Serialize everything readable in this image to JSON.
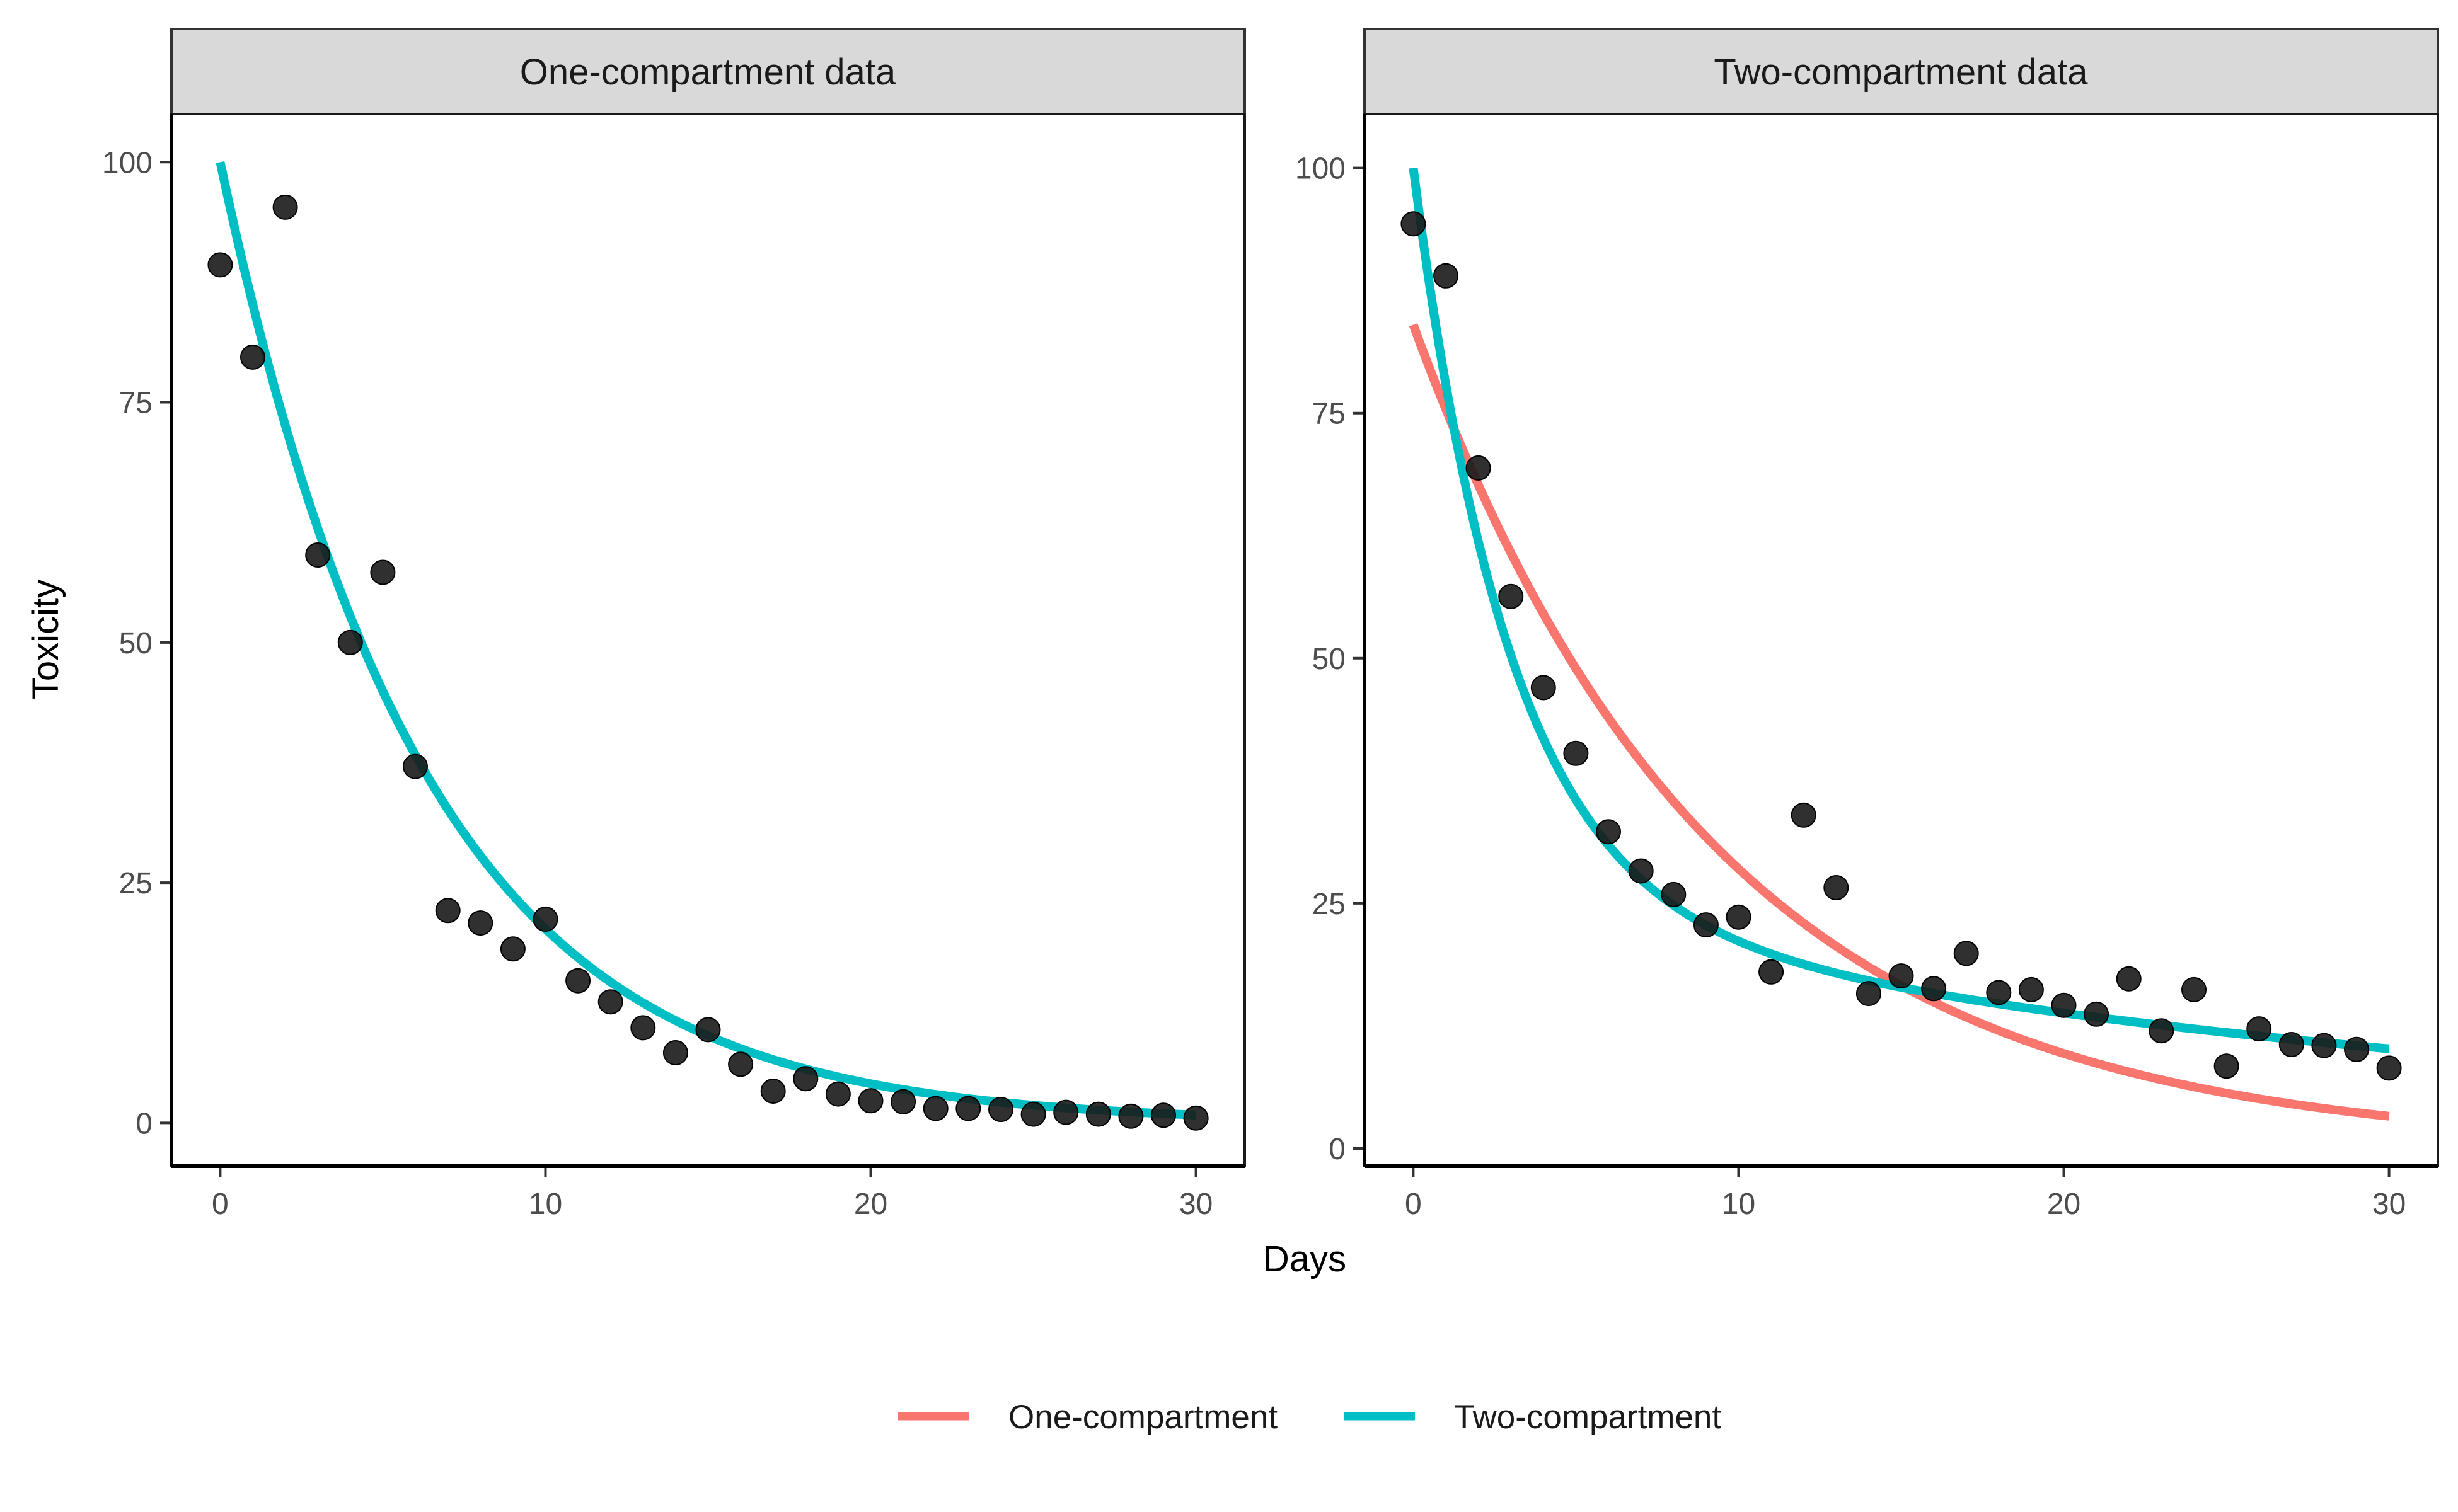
{
  "chart_data": [
    {
      "type": "scatter",
      "panel_title": "One-compartment data",
      "x_ticks": [
        0,
        10,
        20,
        30
      ],
      "y_ticks": [
        0,
        25,
        50,
        75,
        100
      ],
      "xlim": [
        -1.5,
        31.5
      ],
      "ylim": [
        -4.5,
        105
      ],
      "points": {
        "x": [
          0,
          1,
          2,
          3,
          4,
          5,
          6,
          7,
          8,
          9,
          10,
          11,
          12,
          13,
          14,
          15,
          16,
          17,
          18,
          19,
          20,
          21,
          22,
          23,
          24,
          25,
          26,
          27,
          28,
          29,
          30
        ],
        "y": [
          89.3,
          79.7,
          95.3,
          59.1,
          50.0,
          57.3,
          37.1,
          22.1,
          20.8,
          18.1,
          21.2,
          14.8,
          12.6,
          9.9,
          7.3,
          9.7,
          6.1,
          3.3,
          4.6,
          3.0,
          2.3,
          2.2,
          1.5,
          1.5,
          1.4,
          0.9,
          1.1,
          0.9,
          0.7,
          0.8,
          0.5
        ]
      },
      "series": [
        {
          "name": "Two-compartment",
          "color": "#00BFC4",
          "model": {
            "a": 100,
            "k": 0.16,
            "b": 0,
            "m": 0
          }
        }
      ]
    },
    {
      "type": "scatter",
      "panel_title": "Two-compartment data",
      "x_ticks": [
        0,
        10,
        20,
        30
      ],
      "y_ticks": [
        0,
        25,
        50,
        75,
        100
      ],
      "xlim": [
        -1.5,
        31.5
      ],
      "ylim": [
        -1.8,
        105.5
      ],
      "points": {
        "x": [
          0,
          1,
          2,
          3,
          4,
          5,
          6,
          7,
          8,
          9,
          10,
          11,
          12,
          13,
          14,
          15,
          16,
          17,
          18,
          19,
          20,
          21,
          22,
          23,
          24,
          25,
          26,
          27,
          28,
          29,
          30
        ],
        "y": [
          94.3,
          89.0,
          69.4,
          56.3,
          47.0,
          40.3,
          32.3,
          28.3,
          25.9,
          22.8,
          23.6,
          18.0,
          34.0,
          26.6,
          15.8,
          17.6,
          16.3,
          19.9,
          15.9,
          16.2,
          14.6,
          13.7,
          17.3,
          12.0,
          16.2,
          8.4,
          12.2,
          10.6,
          10.5,
          10.1,
          8.2
        ]
      },
      "series": [
        {
          "name": "One-compartment",
          "color": "#F8766D",
          "model": {
            "a": 84,
            "k": 0.108,
            "b": 0,
            "m": 0
          }
        },
        {
          "name": "Two-compartment",
          "color": "#00BFC4",
          "model": {
            "a": 75,
            "k": 0.335,
            "b": 25,
            "m": 0.03
          }
        }
      ]
    }
  ],
  "xlabel": "Days",
  "ylabel": "Toxicity",
  "legend": {
    "position": "bottom",
    "items": [
      {
        "label": "One-compartment",
        "color": "#F8766D"
      },
      {
        "label": "Two-compartment",
        "color": "#00BFC4"
      }
    ]
  },
  "point_color": "#1a1a1a",
  "strip_fill": "#d9d9d9",
  "grid": false
}
